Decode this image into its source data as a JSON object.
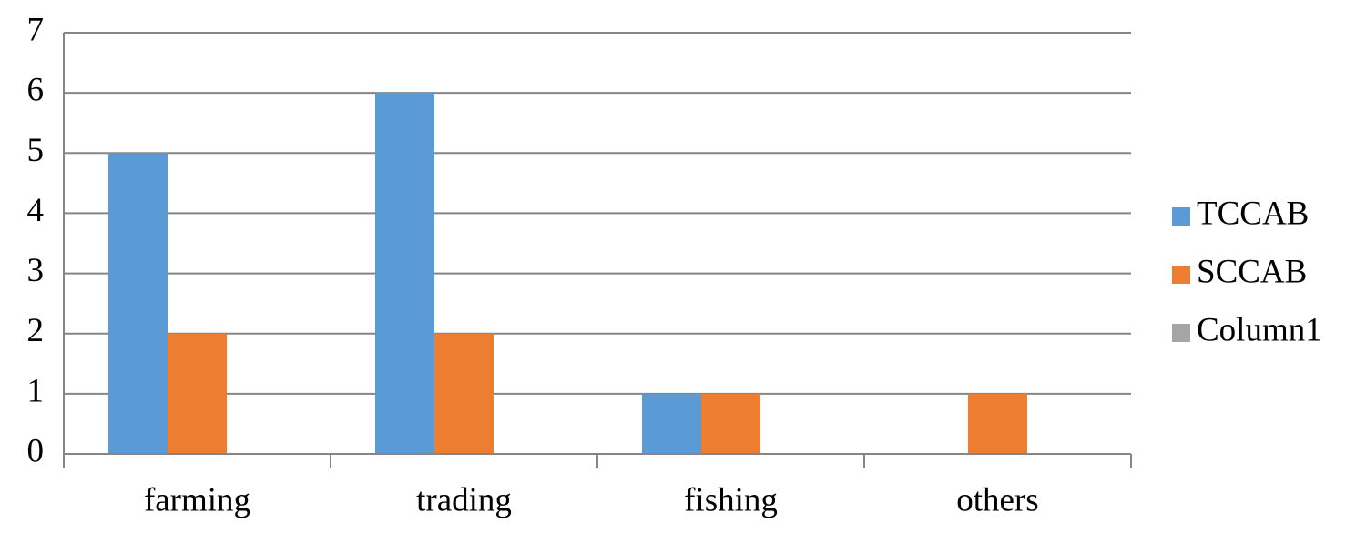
{
  "chart_data": {
    "type": "bar",
    "categories": [
      "farming",
      "trading",
      "fishing",
      "others"
    ],
    "series": [
      {
        "name": "TCCAB",
        "color": "#5b9bd5",
        "values": [
          5,
          6,
          1,
          0
        ]
      },
      {
        "name": "SCCAB",
        "color": "#ed7d31",
        "values": [
          2,
          2,
          1,
          1
        ]
      },
      {
        "name": "Column1",
        "color": "#a5a5a5",
        "values": [
          null,
          null,
          null,
          null
        ]
      }
    ],
    "ylim": [
      0,
      7
    ],
    "yticks": [
      0,
      1,
      2,
      3,
      4,
      5,
      6,
      7
    ],
    "grid": true,
    "legend": "right"
  }
}
